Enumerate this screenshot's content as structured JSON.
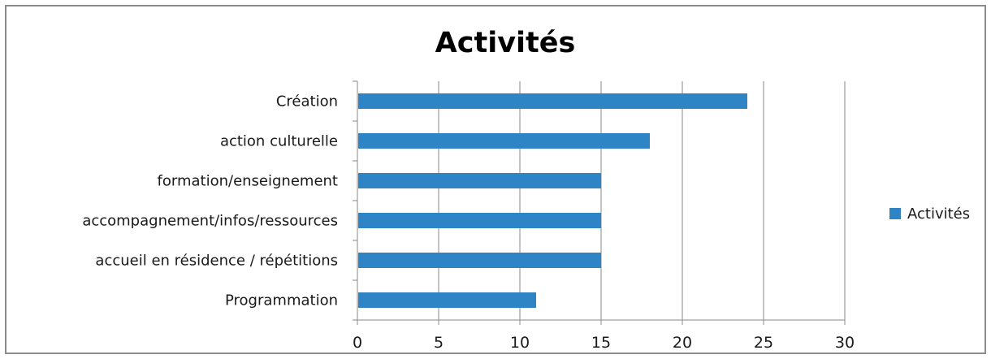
{
  "chart_data": {
    "type": "bar",
    "orientation": "horizontal",
    "title": "Activités",
    "categories": [
      "Création",
      "action culturelle",
      "formation/enseignement",
      "accompagnement/infos/ressources",
      "accueil en résidence / répétitions",
      "Programmation"
    ],
    "series": [
      {
        "name": "Activités",
        "color": "#2e84c5",
        "values": [
          24,
          18,
          15,
          15,
          15,
          11
        ]
      }
    ],
    "xlim": [
      0,
      30
    ],
    "xticks": [
      0,
      5,
      10,
      15,
      20,
      25,
      30
    ],
    "grid": "vertical",
    "legend_position": "right"
  }
}
